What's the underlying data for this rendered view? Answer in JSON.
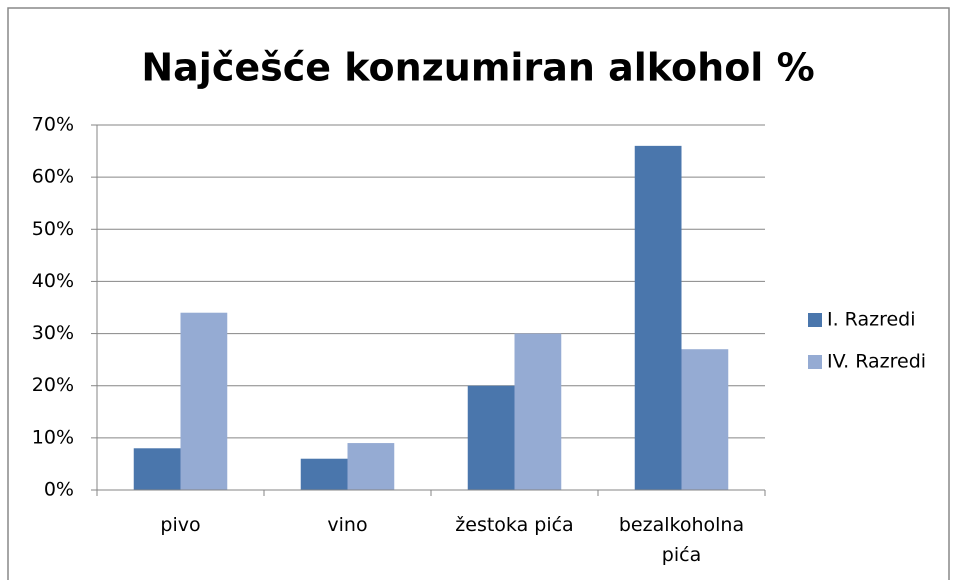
{
  "chart_data": {
    "type": "bar",
    "title": "Najčešće konzumiran alkohol %",
    "categories": [
      "pivo",
      "vino",
      "žestoka pića",
      "bezalkoholna pića"
    ],
    "series": [
      {
        "name": "I. Razredi",
        "color": "#4a76ac",
        "values": [
          8,
          6,
          20,
          66
        ]
      },
      {
        "name": "IV. Razredi",
        "color": "#95abd3",
        "values": [
          34,
          9,
          30,
          27
        ]
      }
    ],
    "ylim": [
      0,
      70
    ],
    "yticks": [
      {
        "value": 0,
        "label": "0%"
      },
      {
        "value": 10,
        "label": "10%"
      },
      {
        "value": 20,
        "label": "20%"
      },
      {
        "value": 30,
        "label": "30%"
      },
      {
        "value": 40,
        "label": "40%"
      },
      {
        "value": 50,
        "label": "50%"
      },
      {
        "value": 60,
        "label": "60%"
      },
      {
        "value": 70,
        "label": "70%"
      }
    ],
    "grid": true,
    "legend": "right"
  }
}
